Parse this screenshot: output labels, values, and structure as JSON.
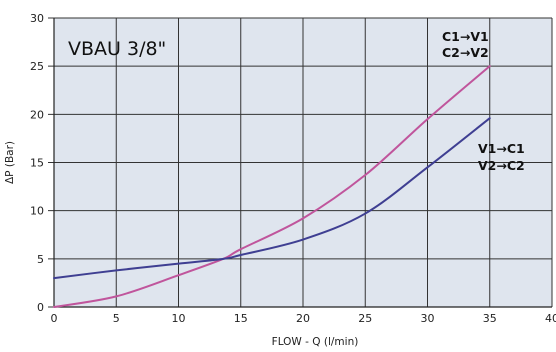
{
  "chart_data": {
    "type": "line",
    "title": "VBAU 3/8\"",
    "xlabel": "FLOW - Q (l/min)",
    "ylabel": "ΔP (Bar)",
    "xlim": [
      0,
      40
    ],
    "ylim": [
      0,
      30
    ],
    "x_ticks": [
      "0",
      "5",
      "10",
      "15",
      "20",
      "25",
      "30",
      "35",
      "40"
    ],
    "y_ticks": [
      "0",
      "5",
      "10",
      "15",
      "20",
      "25",
      "30"
    ],
    "grid": true,
    "plot_background": "#dfe5ee",
    "series": [
      {
        "color": "#c0559c",
        "x": [
          0,
          5,
          10,
          13.6,
          15,
          20,
          25,
          30,
          35
        ],
        "y": [
          0,
          1.1,
          3.3,
          5.0,
          6.0,
          9.2,
          13.7,
          19.5,
          25.0
        ]
      },
      {
        "color": "#3f3f92",
        "x": [
          0,
          5,
          10,
          13.6,
          15,
          20,
          25,
          30,
          35
        ],
        "y": [
          3.0,
          3.8,
          4.5,
          5.0,
          5.4,
          7.0,
          9.7,
          14.5,
          19.6
        ]
      }
    ],
    "annotations": [
      {
        "lines": [
          "C1→V1",
          "C2→V2"
        ],
        "near": "top of pink curve"
      },
      {
        "lines": [
          "V1→C1",
          "V2→C2"
        ],
        "near": "end of blue curve"
      }
    ]
  }
}
